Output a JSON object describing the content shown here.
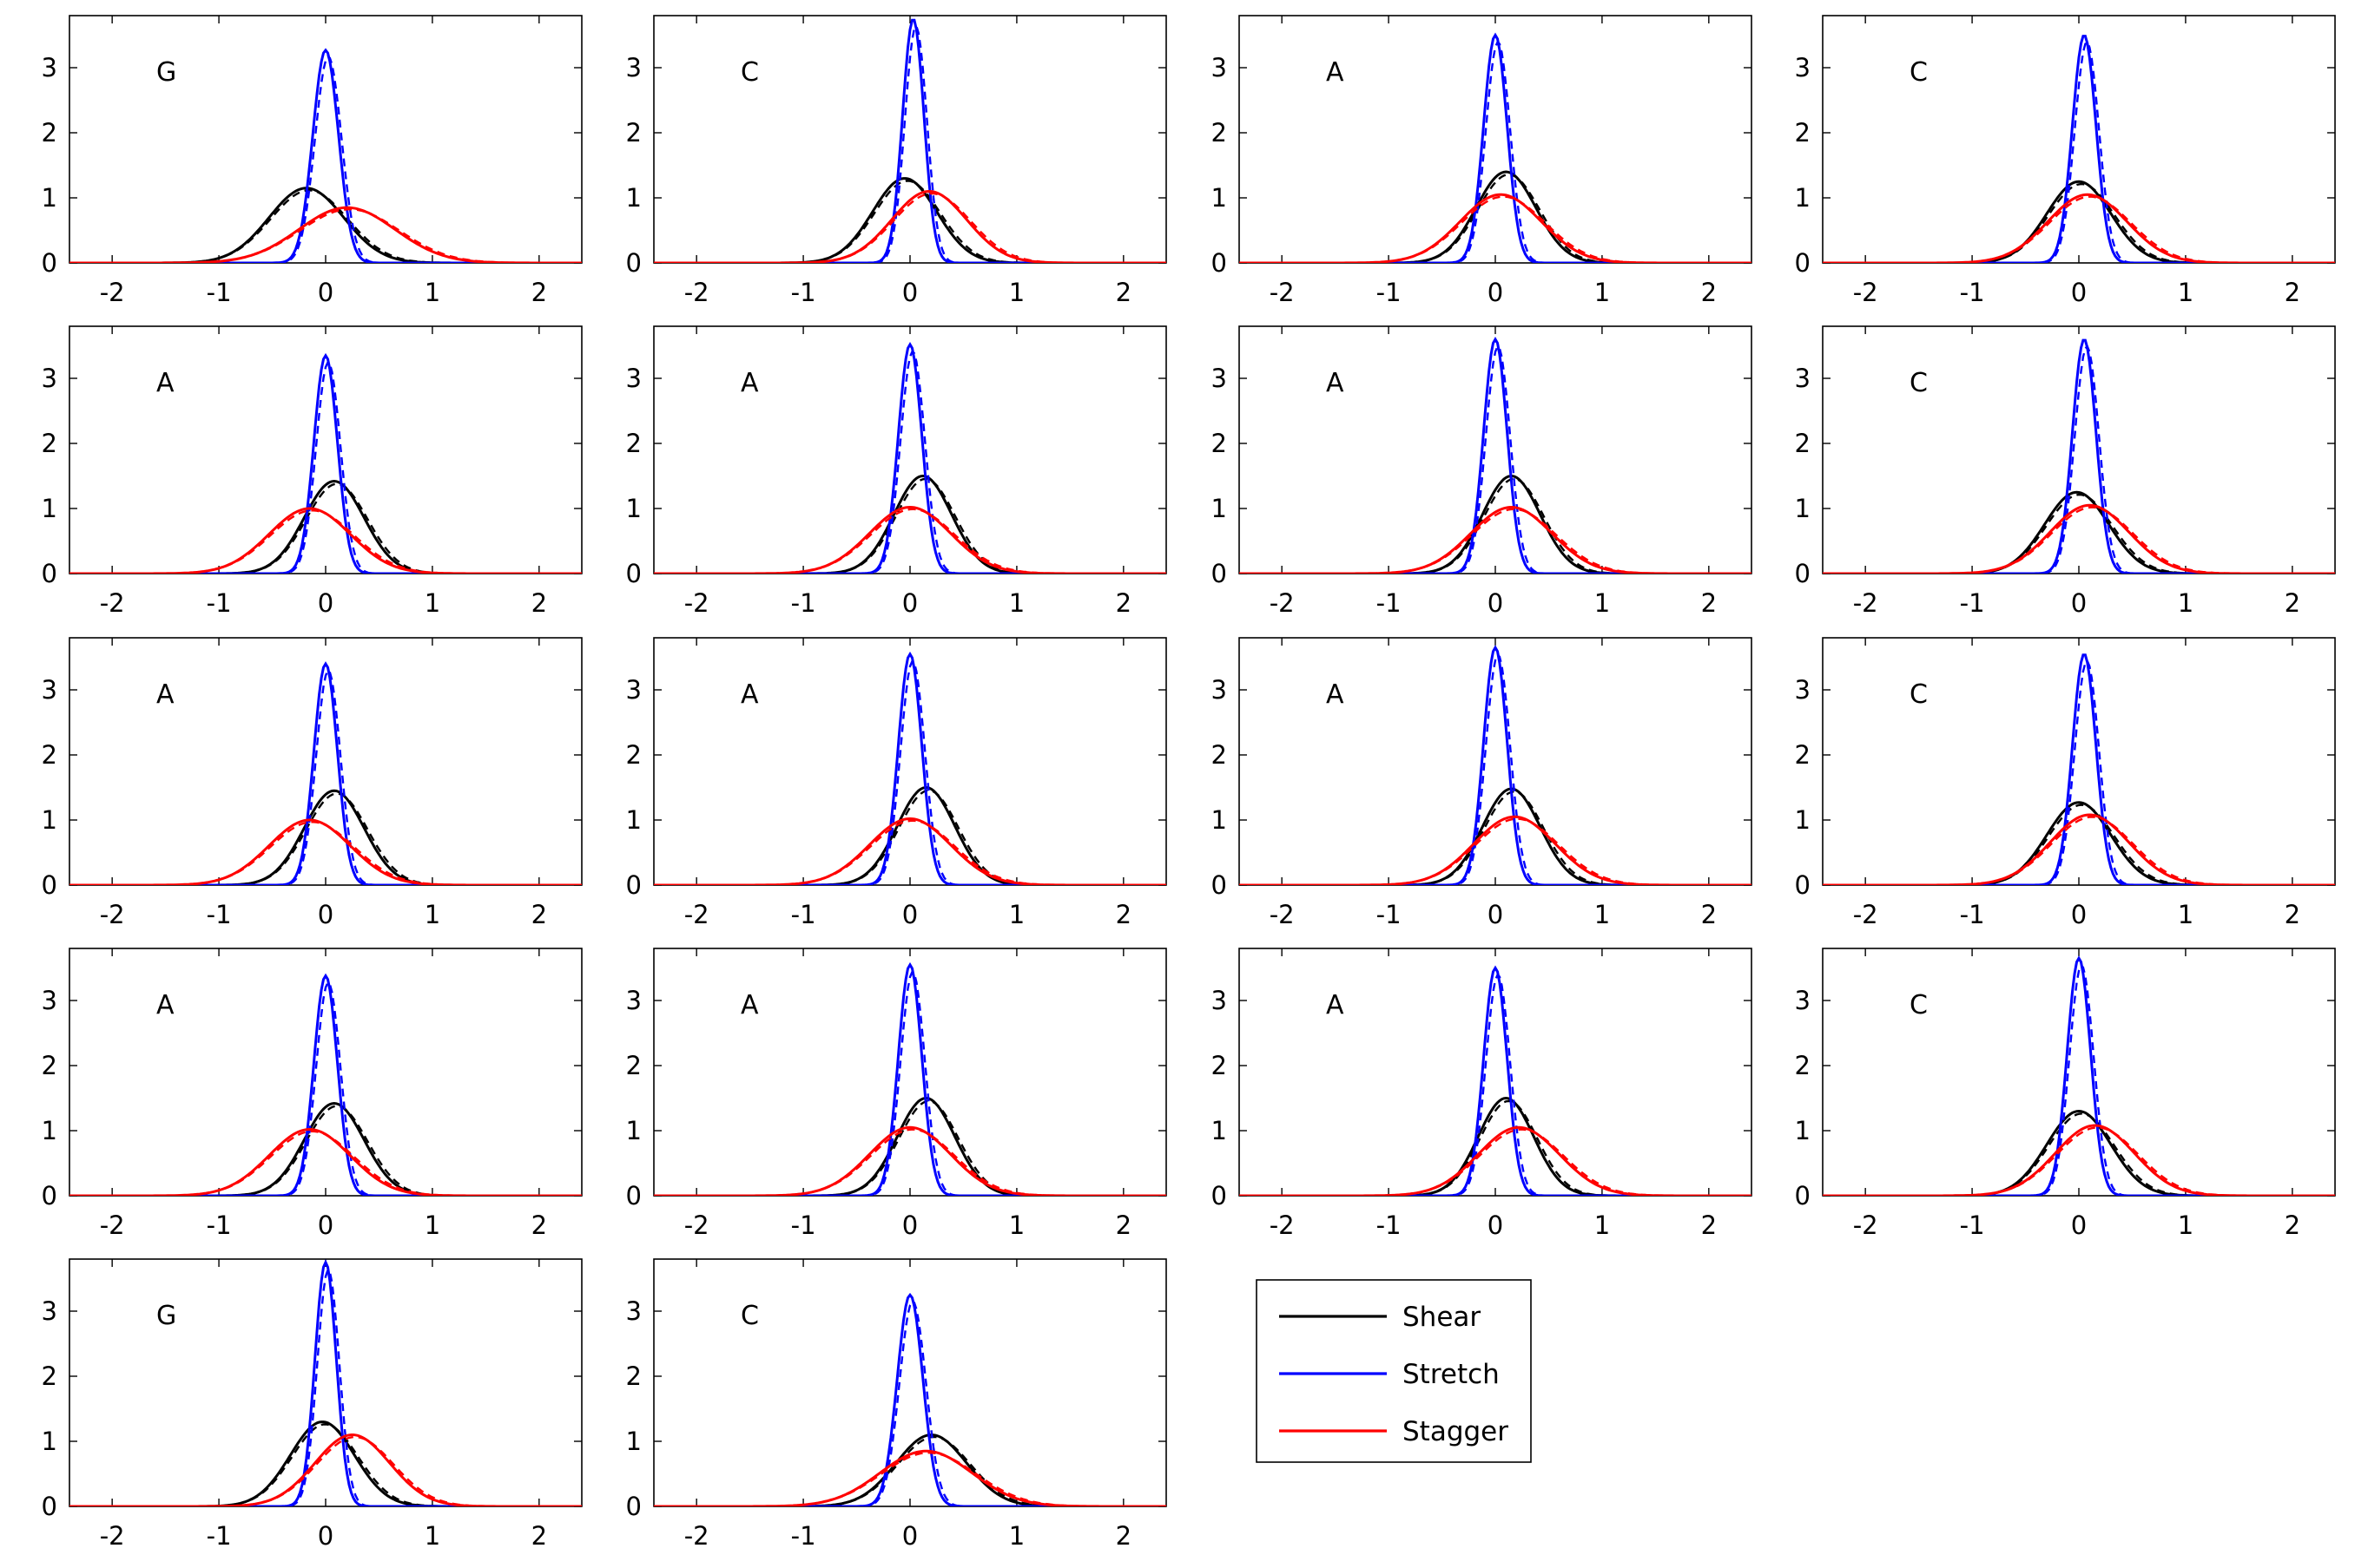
{
  "chart_data": {
    "type": "line",
    "layout": "small-multiples grid, 4 columns",
    "xlim": [
      -2.4,
      2.4
    ],
    "ylim": [
      0,
      3.8
    ],
    "x_ticks": [
      -2,
      -1,
      0,
      1,
      2
    ],
    "y_ticks": [
      0,
      1,
      2,
      3
    ],
    "grid": false,
    "legend": {
      "placement": "grid slot row 5, column 3",
      "entries": [
        {
          "label": "Shear",
          "color": "#000000"
        },
        {
          "label": "Stretch",
          "color": "#0000ff"
        },
        {
          "label": "Stagger",
          "color": "#ff0000"
        }
      ]
    },
    "line_styles": [
      "solid",
      "dashed"
    ],
    "panels": [
      {
        "base": "G",
        "series": [
          {
            "name": "Shear",
            "color": "#000000",
            "peak": [
              -0.18,
              1.15
            ],
            "sd": 0.35
          },
          {
            "name": "Stretch",
            "color": "#0000ff",
            "peak": [
              0.0,
              3.27
            ],
            "sd": 0.12
          },
          {
            "name": "Stagger",
            "color": "#ff0000",
            "peak": [
              0.2,
              0.85
            ],
            "sd": 0.45
          }
        ]
      },
      {
        "base": "C",
        "series": [
          {
            "name": "Shear",
            "color": "#000000",
            "peak": [
              -0.05,
              1.3
            ],
            "sd": 0.3
          },
          {
            "name": "Stretch",
            "color": "#0000ff",
            "peak": [
              0.03,
              3.75
            ],
            "sd": 0.1
          },
          {
            "name": "Stagger",
            "color": "#ff0000",
            "peak": [
              0.18,
              1.1
            ],
            "sd": 0.35
          }
        ]
      },
      {
        "base": "A",
        "series": [
          {
            "name": "Shear",
            "color": "#000000",
            "peak": [
              0.1,
              1.4
            ],
            "sd": 0.28
          },
          {
            "name": "Stretch",
            "color": "#0000ff",
            "peak": [
              0.0,
              3.5
            ],
            "sd": 0.11
          },
          {
            "name": "Stagger",
            "color": "#ff0000",
            "peak": [
              0.05,
              1.05
            ],
            "sd": 0.38
          }
        ]
      },
      {
        "base": "C",
        "series": [
          {
            "name": "Shear",
            "color": "#000000",
            "peak": [
              0.0,
              1.25
            ],
            "sd": 0.3
          },
          {
            "name": "Stretch",
            "color": "#0000ff",
            "peak": [
              0.05,
              3.5
            ],
            "sd": 0.11
          },
          {
            "name": "Stagger",
            "color": "#ff0000",
            "peak": [
              0.08,
              1.05
            ],
            "sd": 0.37
          }
        ]
      },
      {
        "base": "A",
        "series": [
          {
            "name": "Shear",
            "color": "#000000",
            "peak": [
              0.08,
              1.42
            ],
            "sd": 0.28
          },
          {
            "name": "Stretch",
            "color": "#0000ff",
            "peak": [
              0.0,
              3.35
            ],
            "sd": 0.11
          },
          {
            "name": "Stagger",
            "color": "#ff0000",
            "peak": [
              -0.15,
              1.0
            ],
            "sd": 0.38
          }
        ]
      },
      {
        "base": "A",
        "series": [
          {
            "name": "Shear",
            "color": "#000000",
            "peak": [
              0.12,
              1.5
            ],
            "sd": 0.27
          },
          {
            "name": "Stretch",
            "color": "#0000ff",
            "peak": [
              0.0,
              3.52
            ],
            "sd": 0.11
          },
          {
            "name": "Stagger",
            "color": "#ff0000",
            "peak": [
              0.0,
              1.02
            ],
            "sd": 0.38
          }
        ]
      },
      {
        "base": "A",
        "series": [
          {
            "name": "Shear",
            "color": "#000000",
            "peak": [
              0.15,
              1.5
            ],
            "sd": 0.27
          },
          {
            "name": "Stretch",
            "color": "#0000ff",
            "peak": [
              0.0,
              3.6
            ],
            "sd": 0.11
          },
          {
            "name": "Stagger",
            "color": "#ff0000",
            "peak": [
              0.15,
              1.02
            ],
            "sd": 0.38
          }
        ]
      },
      {
        "base": "C",
        "series": [
          {
            "name": "Shear",
            "color": "#000000",
            "peak": [
              -0.02,
              1.25
            ],
            "sd": 0.3
          },
          {
            "name": "Stretch",
            "color": "#0000ff",
            "peak": [
              0.05,
              3.6
            ],
            "sd": 0.11
          },
          {
            "name": "Stagger",
            "color": "#ff0000",
            "peak": [
              0.1,
              1.05
            ],
            "sd": 0.37
          }
        ]
      },
      {
        "base": "A",
        "series": [
          {
            "name": "Shear",
            "color": "#000000",
            "peak": [
              0.08,
              1.45
            ],
            "sd": 0.28
          },
          {
            "name": "Stretch",
            "color": "#0000ff",
            "peak": [
              0.0,
              3.4
            ],
            "sd": 0.11
          },
          {
            "name": "Stagger",
            "color": "#ff0000",
            "peak": [
              -0.15,
              1.0
            ],
            "sd": 0.38
          }
        ]
      },
      {
        "base": "A",
        "series": [
          {
            "name": "Shear",
            "color": "#000000",
            "peak": [
              0.15,
              1.5
            ],
            "sd": 0.27
          },
          {
            "name": "Stretch",
            "color": "#0000ff",
            "peak": [
              0.0,
              3.55
            ],
            "sd": 0.11
          },
          {
            "name": "Stagger",
            "color": "#ff0000",
            "peak": [
              0.0,
              1.02
            ],
            "sd": 0.38
          }
        ]
      },
      {
        "base": "A",
        "series": [
          {
            "name": "Shear",
            "color": "#000000",
            "peak": [
              0.15,
              1.48
            ],
            "sd": 0.27
          },
          {
            "name": "Stretch",
            "color": "#0000ff",
            "peak": [
              0.0,
              3.65
            ],
            "sd": 0.11
          },
          {
            "name": "Stagger",
            "color": "#ff0000",
            "peak": [
              0.18,
              1.05
            ],
            "sd": 0.38
          }
        ]
      },
      {
        "base": "C",
        "series": [
          {
            "name": "Shear",
            "color": "#000000",
            "peak": [
              0.0,
              1.27
            ],
            "sd": 0.3
          },
          {
            "name": "Stretch",
            "color": "#0000ff",
            "peak": [
              0.05,
              3.55
            ],
            "sd": 0.11
          },
          {
            "name": "Stagger",
            "color": "#ff0000",
            "peak": [
              0.1,
              1.08
            ],
            "sd": 0.37
          }
        ]
      },
      {
        "base": "A",
        "series": [
          {
            "name": "Shear",
            "color": "#000000",
            "peak": [
              0.08,
              1.42
            ],
            "sd": 0.28
          },
          {
            "name": "Stretch",
            "color": "#0000ff",
            "peak": [
              0.0,
              3.38
            ],
            "sd": 0.11
          },
          {
            "name": "Stagger",
            "color": "#ff0000",
            "peak": [
              -0.15,
              1.02
            ],
            "sd": 0.38
          }
        ]
      },
      {
        "base": "A",
        "series": [
          {
            "name": "Shear",
            "color": "#000000",
            "peak": [
              0.15,
              1.5
            ],
            "sd": 0.27
          },
          {
            "name": "Stretch",
            "color": "#0000ff",
            "peak": [
              0.0,
              3.55
            ],
            "sd": 0.11
          },
          {
            "name": "Stagger",
            "color": "#ff0000",
            "peak": [
              0.0,
              1.05
            ],
            "sd": 0.38
          }
        ]
      },
      {
        "base": "A",
        "series": [
          {
            "name": "Shear",
            "color": "#000000",
            "peak": [
              0.1,
              1.5
            ],
            "sd": 0.26
          },
          {
            "name": "Stretch",
            "color": "#0000ff",
            "peak": [
              0.0,
              3.5
            ],
            "sd": 0.11
          },
          {
            "name": "Stagger",
            "color": "#ff0000",
            "peak": [
              0.22,
              1.05
            ],
            "sd": 0.38
          }
        ]
      },
      {
        "base": "C",
        "series": [
          {
            "name": "Shear",
            "color": "#000000",
            "peak": [
              0.0,
              1.3
            ],
            "sd": 0.3
          },
          {
            "name": "Stretch",
            "color": "#0000ff",
            "peak": [
              0.0,
              3.65
            ],
            "sd": 0.11
          },
          {
            "name": "Stagger",
            "color": "#ff0000",
            "peak": [
              0.15,
              1.08
            ],
            "sd": 0.37
          }
        ]
      },
      {
        "base": "G",
        "series": [
          {
            "name": "Shear",
            "color": "#000000",
            "peak": [
              -0.03,
              1.3
            ],
            "sd": 0.3
          },
          {
            "name": "Stretch",
            "color": "#0000ff",
            "peak": [
              0.0,
              3.75
            ],
            "sd": 0.1
          },
          {
            "name": "Stagger",
            "color": "#ff0000",
            "peak": [
              0.25,
              1.1
            ],
            "sd": 0.35
          }
        ]
      },
      {
        "base": "C",
        "series": [
          {
            "name": "Shear",
            "color": "#000000",
            "peak": [
              0.2,
              1.1
            ],
            "sd": 0.33
          },
          {
            "name": "Stretch",
            "color": "#0000ff",
            "peak": [
              0.0,
              3.25
            ],
            "sd": 0.12
          },
          {
            "name": "Stagger",
            "color": "#ff0000",
            "peak": [
              0.15,
              0.85
            ],
            "sd": 0.43
          }
        ]
      }
    ]
  }
}
